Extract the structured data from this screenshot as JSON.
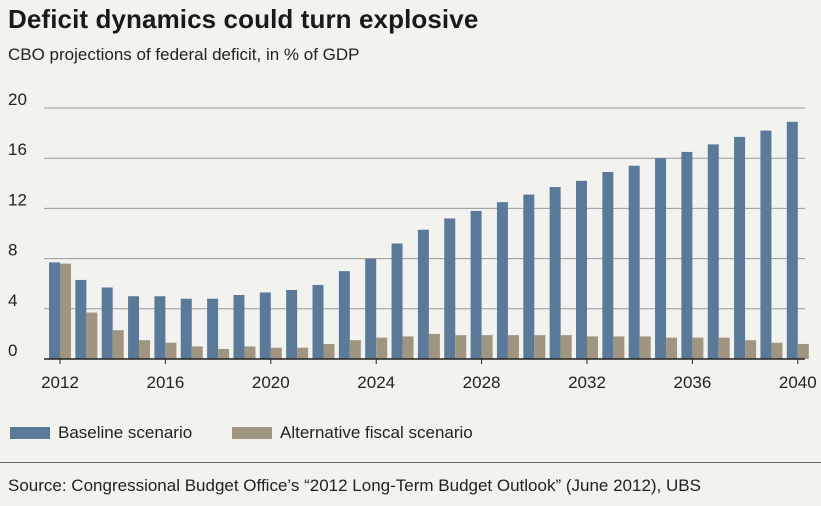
{
  "header": {
    "title": "Deficit dynamics could turn explosive",
    "subtitle": "CBO projections of federal deficit, in % of GDP"
  },
  "legend": {
    "baseline": "Baseline scenario",
    "alternative": "Alternative fiscal scenario"
  },
  "footer": {
    "source": "Source: Congressional Budget Office’s “2012 Long-Term Budget Outlook” (June 2012), UBS"
  },
  "colors": {
    "baseline": "#5b7a9a",
    "alternative": "#a09580",
    "grid": "#999999",
    "axis": "#222222"
  },
  "chart_data": {
    "type": "bar",
    "x": [
      2012,
      2013,
      2014,
      2015,
      2016,
      2017,
      2018,
      2019,
      2020,
      2021,
      2022,
      2023,
      2024,
      2025,
      2026,
      2027,
      2028,
      2029,
      2030,
      2031,
      2032,
      2033,
      2034,
      2035,
      2036,
      2037,
      2038,
      2039,
      2040
    ],
    "xticks": [
      "2012",
      "2016",
      "2020",
      "2024",
      "2028",
      "2032",
      "2036",
      "2040"
    ],
    "yticks": [
      "0",
      "4",
      "8",
      "12",
      "16",
      "20"
    ],
    "ylim": [
      0,
      20
    ],
    "grid": true,
    "legend_position": "bottom-left",
    "series": [
      {
        "name": "Baseline scenario",
        "values": [
          7.7,
          6.3,
          5.7,
          5.0,
          5.0,
          4.8,
          4.8,
          5.1,
          5.3,
          5.5,
          5.9,
          7.0,
          8.0,
          9.2,
          10.3,
          11.2,
          11.8,
          12.5,
          13.1,
          13.7,
          14.2,
          14.9,
          15.4,
          16.0,
          16.5,
          17.1,
          17.7,
          18.2,
          18.9
        ]
      },
      {
        "name": "Alternative fiscal scenario",
        "values": [
          7.6,
          3.7,
          2.3,
          1.5,
          1.3,
          1.0,
          0.8,
          1.0,
          0.9,
          0.9,
          1.2,
          1.5,
          1.7,
          1.8,
          2.0,
          1.9,
          1.9,
          1.9,
          1.9,
          1.9,
          1.8,
          1.8,
          1.8,
          1.7,
          1.7,
          1.7,
          1.5,
          1.3,
          1.2
        ]
      }
    ]
  }
}
